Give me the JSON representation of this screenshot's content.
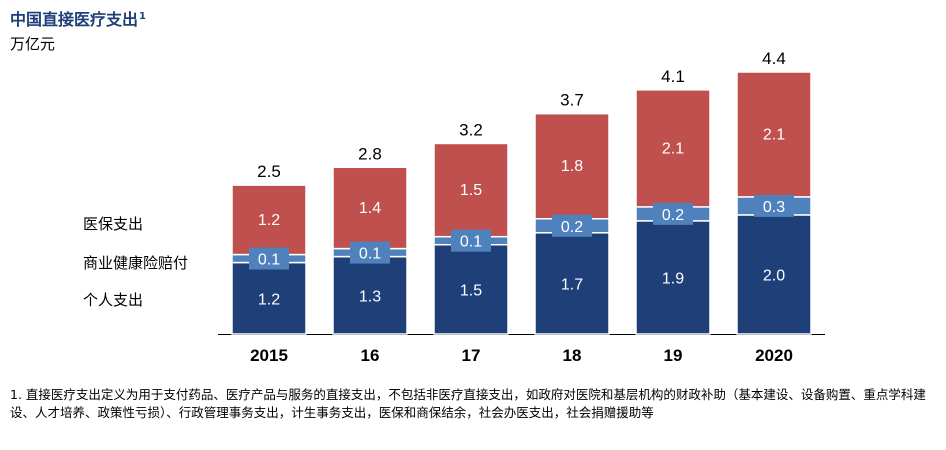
{
  "title": "中国直接医疗支出",
  "title_footnote_mark": "1",
  "unit": "万亿元",
  "footnote": "1. 直接医疗支出定义为用于支付药品、医疗产品与服务的直接支出，不包括非医疗直接支出，如政府对医院和基层机构的财政补助（基本建设、设备购置、重点学科建设、人才培养、政策性亏损）、行政管理事务支出，计生事务支出，医保和商保结余，社会办医支出，社会捐赠援助等",
  "colors": {
    "personal": "#1f3f78",
    "commercial": "#4f81bd",
    "medical_insurance": "#c0504d",
    "title": "#1f3f78"
  },
  "chart_data": {
    "type": "bar",
    "stacked": true,
    "categories": [
      "2015",
      "16",
      "17",
      "18",
      "19",
      "2020"
    ],
    "series": [
      {
        "name": "个人支出",
        "values": [
          1.2,
          1.3,
          1.5,
          1.7,
          1.9,
          2.0
        ]
      },
      {
        "name": "商业健康险赔付",
        "values": [
          0.1,
          0.1,
          0.1,
          0.2,
          0.2,
          0.3
        ]
      },
      {
        "name": "医保支出",
        "values": [
          1.2,
          1.4,
          1.5,
          1.8,
          2.1,
          2.1
        ]
      }
    ],
    "totals": [
      2.5,
      2.8,
      3.2,
      3.7,
      4.1,
      4.4
    ],
    "ylim": [
      0,
      4.4
    ],
    "grid": false,
    "legend": "left"
  }
}
